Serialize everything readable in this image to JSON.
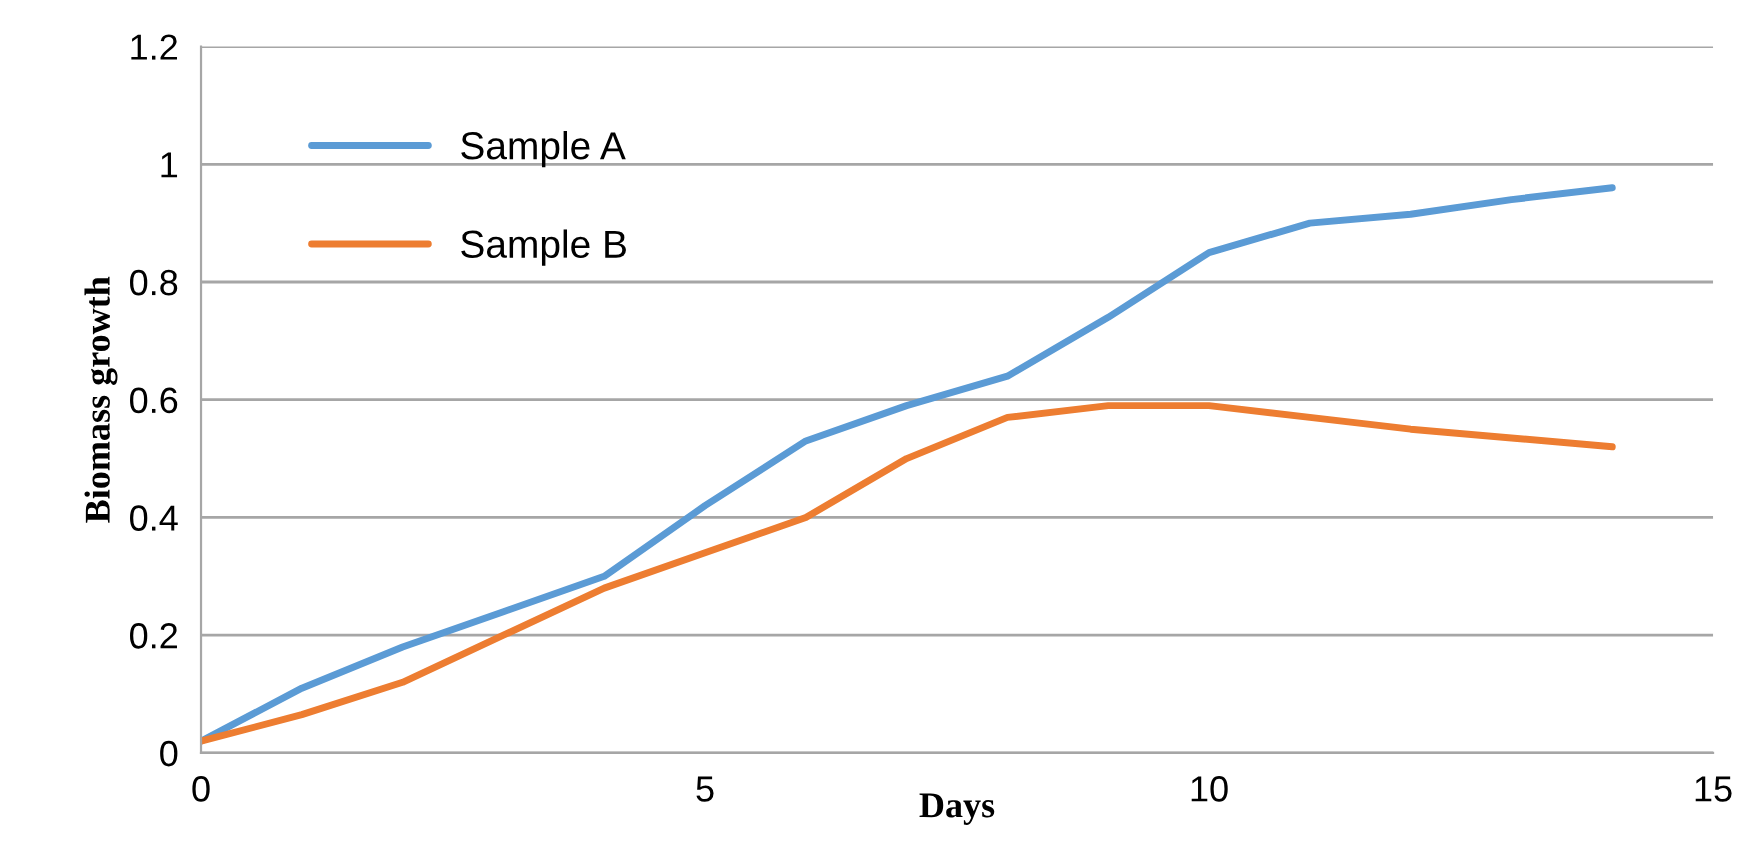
{
  "chart_data": {
    "type": "line",
    "xlabel": "Days",
    "ylabel": "Biomass growth",
    "x": [
      0,
      1,
      2,
      3,
      4,
      5,
      6,
      7,
      8,
      9,
      10,
      11,
      12,
      13,
      14
    ],
    "series": [
      {
        "name": "Sample A",
        "color": "#5b9bd5",
        "values": [
          0.02,
          0.11,
          0.18,
          0.24,
          0.3,
          0.42,
          0.53,
          0.59,
          0.64,
          0.74,
          0.85,
          0.9,
          0.915,
          0.94,
          0.96
        ]
      },
      {
        "name": "Sample B",
        "color": "#ed7d31",
        "values": [
          0.02,
          0.065,
          0.12,
          0.2,
          0.28,
          0.34,
          0.4,
          0.5,
          0.57,
          0.59,
          0.59,
          0.57,
          0.55,
          0.535,
          0.52
        ]
      }
    ],
    "xlim": [
      0,
      15
    ],
    "xticks": [
      0,
      5,
      10,
      15
    ],
    "ylim": [
      0,
      1.2
    ],
    "yticks": [
      0,
      {
        "value": 0.2,
        "label": "0.2"
      },
      {
        "value": 0.4,
        "label": "0.4"
      },
      {
        "value": 0.6,
        "label": "0.6"
      },
      {
        "value": 0.8,
        "label": "0.8"
      },
      1,
      {
        "value": 1.2,
        "label": "1.2"
      }
    ],
    "grid": "y",
    "legend": "top left",
    "marker": "none",
    "line_style": "solid"
  }
}
